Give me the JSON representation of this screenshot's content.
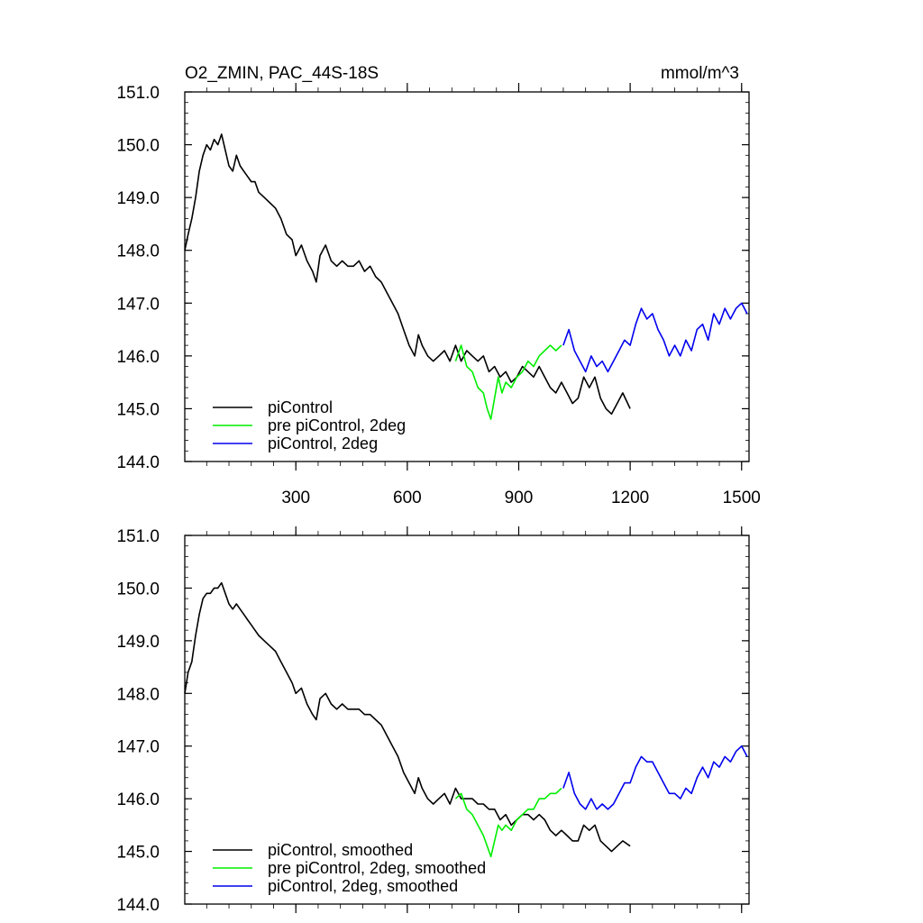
{
  "header": {
    "title": "O2_ZMIN, PAC_44S-18S",
    "units": "mmol/m^3"
  },
  "chart_data": [
    {
      "type": "line",
      "xlim": [
        1,
        1520
      ],
      "ylim": [
        144,
        151
      ],
      "xticks": [
        300,
        600,
        900,
        1200,
        1500
      ],
      "yticks": [
        144.0,
        145.0,
        146.0,
        147.0,
        148.0,
        149.0,
        150.0,
        151.0
      ],
      "ytick_labels": [
        "144.0",
        "145.0",
        "146.0",
        "147.0",
        "148.0",
        "149.0",
        "150.0",
        "151.0"
      ],
      "xtick_labels": [
        "300",
        "600",
        "900",
        "1200",
        "1500"
      ],
      "legend_position": "bottom-left",
      "series": [
        {
          "name": "piControl",
          "color": "#000000",
          "x": [
            1,
            10,
            20,
            30,
            40,
            50,
            60,
            70,
            80,
            90,
            100,
            110,
            120,
            130,
            140,
            150,
            160,
            170,
            180,
            190,
            200,
            215,
            230,
            245,
            260,
            275,
            290,
            300,
            315,
            330,
            345,
            355,
            365,
            380,
            395,
            410,
            425,
            440,
            455,
            470,
            485,
            500,
            515,
            530,
            545,
            560,
            575,
            590,
            605,
            620,
            630,
            640,
            655,
            670,
            685,
            700,
            715,
            730,
            745,
            760,
            775,
            790,
            805,
            820,
            835,
            850,
            865,
            880,
            895,
            910,
            925,
            940,
            955,
            970,
            985,
            1000,
            1015,
            1030,
            1045,
            1060,
            1075,
            1090,
            1105,
            1120,
            1135,
            1150,
            1165,
            1180,
            1200
          ],
          "y": [
            148.0,
            148.3,
            148.6,
            149.0,
            149.5,
            149.8,
            150.0,
            149.9,
            150.1,
            150.0,
            150.2,
            149.9,
            149.6,
            149.5,
            149.8,
            149.6,
            149.5,
            149.4,
            149.3,
            149.3,
            149.1,
            149.0,
            148.9,
            148.8,
            148.6,
            148.3,
            148.2,
            147.9,
            148.1,
            147.8,
            147.6,
            147.4,
            147.9,
            148.1,
            147.8,
            147.7,
            147.8,
            147.7,
            147.7,
            147.8,
            147.6,
            147.7,
            147.5,
            147.4,
            147.2,
            147.0,
            146.8,
            146.5,
            146.2,
            146.0,
            146.4,
            146.2,
            146.0,
            145.9,
            146.0,
            146.1,
            145.9,
            146.2,
            145.9,
            146.1,
            146.0,
            145.9,
            146.0,
            145.7,
            145.8,
            145.6,
            145.7,
            145.5,
            145.6,
            145.8,
            145.7,
            145.6,
            145.8,
            145.6,
            145.4,
            145.3,
            145.5,
            145.3,
            145.1,
            145.2,
            145.6,
            145.4,
            145.6,
            145.2,
            145.0,
            144.9,
            145.1,
            145.3,
            145.0
          ]
        },
        {
          "name": "pre piControl, 2deg",
          "color": "#00ee00",
          "x": [
            730,
            745,
            760,
            775,
            790,
            805,
            815,
            825,
            835,
            845,
            855,
            865,
            880,
            895,
            910,
            925,
            940,
            955,
            970,
            985,
            1000,
            1015
          ],
          "y": [
            145.9,
            146.2,
            145.8,
            145.7,
            145.4,
            145.3,
            145.0,
            144.8,
            145.2,
            145.6,
            145.3,
            145.5,
            145.4,
            145.6,
            145.7,
            145.9,
            145.8,
            146.0,
            146.1,
            146.2,
            146.1,
            146.2
          ]
        },
        {
          "name": "piControl, 2deg",
          "color": "#0000ee",
          "x": [
            1020,
            1035,
            1050,
            1065,
            1080,
            1095,
            1110,
            1125,
            1140,
            1155,
            1170,
            1185,
            1200,
            1215,
            1230,
            1245,
            1260,
            1275,
            1290,
            1305,
            1320,
            1335,
            1350,
            1365,
            1380,
            1395,
            1410,
            1425,
            1440,
            1455,
            1470,
            1485,
            1500,
            1515
          ],
          "y": [
            146.2,
            146.5,
            146.1,
            145.9,
            145.7,
            146.0,
            145.8,
            145.9,
            145.7,
            145.9,
            146.1,
            146.3,
            146.2,
            146.6,
            146.9,
            146.7,
            146.8,
            146.5,
            146.3,
            146.0,
            146.2,
            146.0,
            146.3,
            146.1,
            146.5,
            146.6,
            146.3,
            146.8,
            146.6,
            146.9,
            146.7,
            146.9,
            147.0,
            146.8
          ]
        }
      ]
    },
    {
      "type": "line",
      "xlim": [
        1,
        1520
      ],
      "ylim": [
        144,
        151
      ],
      "xticks": [
        300,
        600,
        900,
        1200,
        1500
      ],
      "yticks": [
        144.0,
        145.0,
        146.0,
        147.0,
        148.0,
        149.0,
        150.0,
        151.0
      ],
      "ytick_labels": [
        "144.0",
        "145.0",
        "146.0",
        "147.0",
        "148.0",
        "149.0",
        "150.0",
        "151.0"
      ],
      "legend_position": "bottom-left",
      "series": [
        {
          "name": "piControl, smoothed",
          "color": "#000000",
          "x": [
            1,
            10,
            20,
            30,
            40,
            50,
            60,
            70,
            80,
            90,
            100,
            110,
            120,
            130,
            140,
            150,
            160,
            170,
            180,
            190,
            200,
            215,
            230,
            245,
            260,
            275,
            290,
            300,
            315,
            330,
            345,
            355,
            365,
            380,
            395,
            410,
            425,
            440,
            455,
            470,
            485,
            500,
            515,
            530,
            545,
            560,
            575,
            590,
            605,
            620,
            630,
            640,
            655,
            670,
            685,
            700,
            715,
            730,
            745,
            760,
            775,
            790,
            805,
            820,
            835,
            850,
            865,
            880,
            895,
            910,
            925,
            940,
            955,
            970,
            985,
            1000,
            1015,
            1030,
            1045,
            1060,
            1075,
            1090,
            1105,
            1120,
            1135,
            1150,
            1165,
            1180,
            1200
          ],
          "y": [
            148.0,
            148.4,
            148.6,
            149.1,
            149.5,
            149.8,
            149.9,
            149.9,
            150.0,
            150.0,
            150.1,
            149.9,
            149.7,
            149.6,
            149.7,
            149.6,
            149.5,
            149.4,
            149.3,
            149.2,
            149.1,
            149.0,
            148.9,
            148.8,
            148.6,
            148.4,
            148.2,
            148.0,
            148.1,
            147.8,
            147.6,
            147.5,
            147.9,
            148.0,
            147.8,
            147.7,
            147.8,
            147.7,
            147.7,
            147.7,
            147.6,
            147.6,
            147.5,
            147.4,
            147.2,
            147.0,
            146.8,
            146.5,
            146.3,
            146.1,
            146.4,
            146.2,
            146.0,
            145.9,
            146.0,
            146.1,
            145.9,
            146.2,
            146.0,
            146.0,
            146.0,
            145.9,
            145.9,
            145.8,
            145.8,
            145.6,
            145.7,
            145.5,
            145.6,
            145.7,
            145.7,
            145.6,
            145.7,
            145.6,
            145.4,
            145.3,
            145.4,
            145.3,
            145.2,
            145.2,
            145.5,
            145.4,
            145.5,
            145.2,
            145.1,
            145.0,
            145.1,
            145.2,
            145.1
          ]
        },
        {
          "name": "pre piControl, 2deg, smoothed",
          "color": "#00ee00",
          "x": [
            730,
            745,
            760,
            775,
            790,
            805,
            815,
            825,
            835,
            845,
            855,
            865,
            880,
            895,
            910,
            925,
            940,
            955,
            970,
            985,
            1000,
            1015
          ],
          "y": [
            146.0,
            146.1,
            145.8,
            145.7,
            145.5,
            145.3,
            145.1,
            144.9,
            145.2,
            145.5,
            145.4,
            145.5,
            145.4,
            145.6,
            145.7,
            145.8,
            145.8,
            146.0,
            146.0,
            146.1,
            146.1,
            146.2
          ]
        },
        {
          "name": "piControl, 2deg, smoothed",
          "color": "#0000ee",
          "x": [
            1020,
            1035,
            1050,
            1065,
            1080,
            1095,
            1110,
            1125,
            1140,
            1155,
            1170,
            1185,
            1200,
            1215,
            1230,
            1245,
            1260,
            1275,
            1290,
            1305,
            1320,
            1335,
            1350,
            1365,
            1380,
            1395,
            1410,
            1425,
            1440,
            1455,
            1470,
            1485,
            1500,
            1515
          ],
          "y": [
            146.2,
            146.5,
            146.1,
            145.9,
            145.8,
            146.0,
            145.8,
            145.9,
            145.8,
            145.9,
            146.1,
            146.3,
            146.3,
            146.6,
            146.8,
            146.7,
            146.7,
            146.5,
            146.3,
            146.1,
            146.1,
            146.0,
            146.2,
            146.1,
            146.4,
            146.6,
            146.4,
            146.7,
            146.6,
            146.8,
            146.7,
            146.9,
            147.0,
            146.8
          ]
        }
      ]
    }
  ]
}
